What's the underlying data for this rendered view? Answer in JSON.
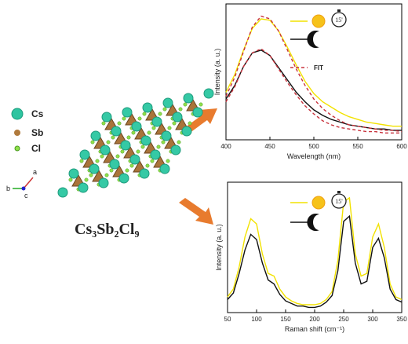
{
  "structure": {
    "labels": [
      "Cs",
      "Sb",
      "Cl"
    ],
    "formula": "Cs₃Sb₂Cl₉",
    "axes": [
      "a",
      "b",
      "c"
    ]
  },
  "chart_data": [
    {
      "type": "line",
      "xlabel": "Wavelength (nm)",
      "ylabel": "Intensity (a. u.)",
      "annotations": [
        "15'"
      ],
      "x": [
        400,
        410,
        420,
        430,
        440,
        450,
        460,
        470,
        480,
        490,
        500,
        510,
        520,
        530,
        540,
        550,
        560,
        570,
        580,
        590,
        600
      ],
      "xlim": [
        400,
        600
      ],
      "xticks": [
        400,
        450,
        500,
        550,
        600
      ],
      "ylim": [
        0,
        100
      ],
      "series": [
        {
          "color": "#f2e200",
          "values": [
            35,
            48,
            66,
            82,
            89,
            88,
            80,
            68,
            55,
            43,
            34,
            28,
            24,
            20,
            17,
            15,
            13,
            12,
            11,
            10,
            10
          ]
        },
        {
          "color": "#111111",
          "values": [
            30,
            40,
            54,
            64,
            66,
            62,
            53,
            44,
            35,
            28,
            22,
            18,
            15,
            13,
            11,
            10,
            9,
            8,
            8,
            7,
            7
          ]
        },
        {
          "name": "FIT",
          "color": "#c8323c",
          "dashed": true,
          "values": [
            32,
            46,
            65,
            83,
            91,
            89,
            80,
            66,
            52,
            40,
            30,
            23,
            18,
            14,
            11,
            10,
            9,
            8,
            7,
            7,
            6
          ]
        },
        {
          "color": "#c8323c",
          "dashed": true,
          "values": [
            28,
            39,
            54,
            64,
            67,
            62,
            52,
            42,
            33,
            25,
            19,
            14,
            11,
            9,
            8,
            7,
            6,
            6,
            5,
            5,
            5
          ]
        }
      ]
    },
    {
      "type": "line",
      "xlabel": "Raman shift (cm⁻¹)",
      "ylabel": "Intensity (a. u.)",
      "annotations": [
        "15'"
      ],
      "x": [
        50,
        60,
        70,
        80,
        90,
        100,
        110,
        120,
        130,
        140,
        150,
        160,
        170,
        180,
        190,
        200,
        210,
        220,
        230,
        240,
        250,
        260,
        270,
        280,
        290,
        300,
        310,
        320,
        330,
        340,
        350
      ],
      "xlim": [
        50,
        350
      ],
      "xticks": [
        50,
        100,
        150,
        200,
        250,
        300,
        350
      ],
      "ylim": [
        0,
        100
      ],
      "series": [
        {
          "color": "#f2e200",
          "values": [
            12,
            18,
            35,
            58,
            72,
            68,
            45,
            30,
            28,
            18,
            12,
            9,
            7,
            6,
            6,
            6,
            7,
            10,
            16,
            40,
            85,
            88,
            45,
            28,
            30,
            58,
            68,
            50,
            22,
            12,
            10
          ]
        },
        {
          "color": "#111111",
          "values": [
            10,
            15,
            30,
            48,
            60,
            56,
            38,
            25,
            22,
            14,
            9,
            7,
            5,
            5,
            4,
            4,
            5,
            8,
            13,
            32,
            70,
            74,
            38,
            22,
            24,
            50,
            57,
            42,
            18,
            10,
            8
          ]
        }
      ]
    }
  ]
}
